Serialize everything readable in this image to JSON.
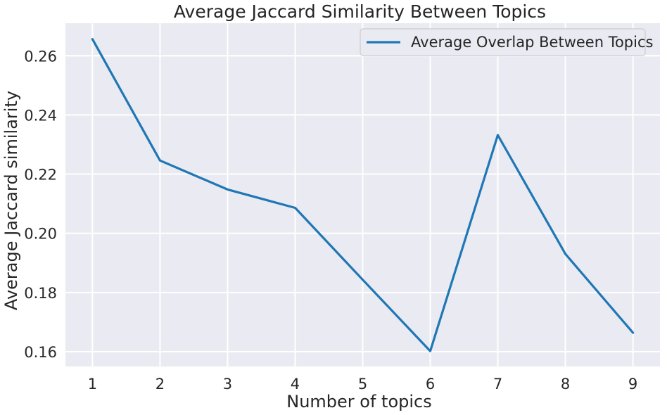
{
  "chart_data": {
    "type": "line",
    "title": "Average Jaccard Similarity Between Topics",
    "xlabel": "Number of topics",
    "ylabel": "Average Jaccard similarity",
    "x": [
      1,
      2,
      3,
      4,
      5,
      6,
      7,
      8,
      9
    ],
    "xticks": [
      "1",
      "2",
      "3",
      "4",
      "5",
      "6",
      "7",
      "8",
      "9"
    ],
    "yticks": [
      "0.16",
      "0.18",
      "0.20",
      "0.22",
      "0.24",
      "0.26"
    ],
    "ytick_values": [
      0.16,
      0.18,
      0.2,
      0.22,
      0.24,
      0.26
    ],
    "xlim": [
      0.6,
      9.4
    ],
    "ylim": [
      0.155,
      0.271
    ],
    "grid": true,
    "legend_position": "top-right",
    "series": [
      {
        "name": "Average Overlap Between Topics",
        "color": "#1f77b4",
        "values": [
          0.2656,
          0.2246,
          0.2148,
          0.2086,
          0.1843,
          0.1602,
          0.2332,
          0.193,
          0.1664
        ]
      }
    ],
    "background_color": "#eaeaf2",
    "grid_color": "#ffffff"
  }
}
